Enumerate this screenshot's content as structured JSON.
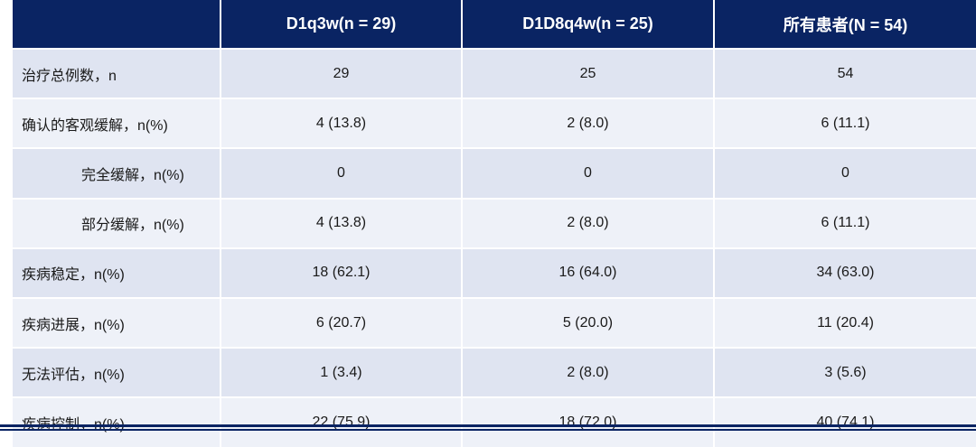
{
  "table": {
    "headers": [
      "",
      "D1q3w(n = 29)",
      "D1D8q4w(n = 25)",
      "所有患者(N = 54)"
    ],
    "rows": [
      {
        "label": "治疗总例数，n",
        "indent": false,
        "values": [
          "29",
          "25",
          "54"
        ]
      },
      {
        "label": "确认的客观缓解，n(%)",
        "indent": false,
        "values": [
          "4 (13.8)",
          "2 (8.0)",
          "6 (11.1)"
        ]
      },
      {
        "label": "完全缓解，n(%)",
        "indent": true,
        "values": [
          "0",
          "0",
          "0"
        ]
      },
      {
        "label": "部分缓解，n(%)",
        "indent": true,
        "values": [
          "4 (13.8)",
          "2 (8.0)",
          "6 (11.1)"
        ]
      },
      {
        "label": "疾病稳定，n(%)",
        "indent": false,
        "values": [
          "18 (62.1)",
          "16 (64.0)",
          "34 (63.0)"
        ]
      },
      {
        "label": "疾病进展，n(%)",
        "indent": false,
        "values": [
          "6 (20.7)",
          "5 (20.0)",
          "11 (20.4)"
        ]
      },
      {
        "label": "无法评估，n(%)",
        "indent": false,
        "values": [
          "1 (3.4)",
          "2 (8.0)",
          "3 (5.6)"
        ]
      },
      {
        "label": "疾病控制，n(%)",
        "indent": false,
        "values": [
          "22 (75.9)",
          "18 (72.0)",
          "40 (74.1)"
        ]
      }
    ]
  },
  "colors": {
    "header_bg": "#0a2463",
    "row_odd_bg": "#dfe4f1",
    "row_even_bg": "#eef1f8",
    "rule": "#0a2463"
  }
}
